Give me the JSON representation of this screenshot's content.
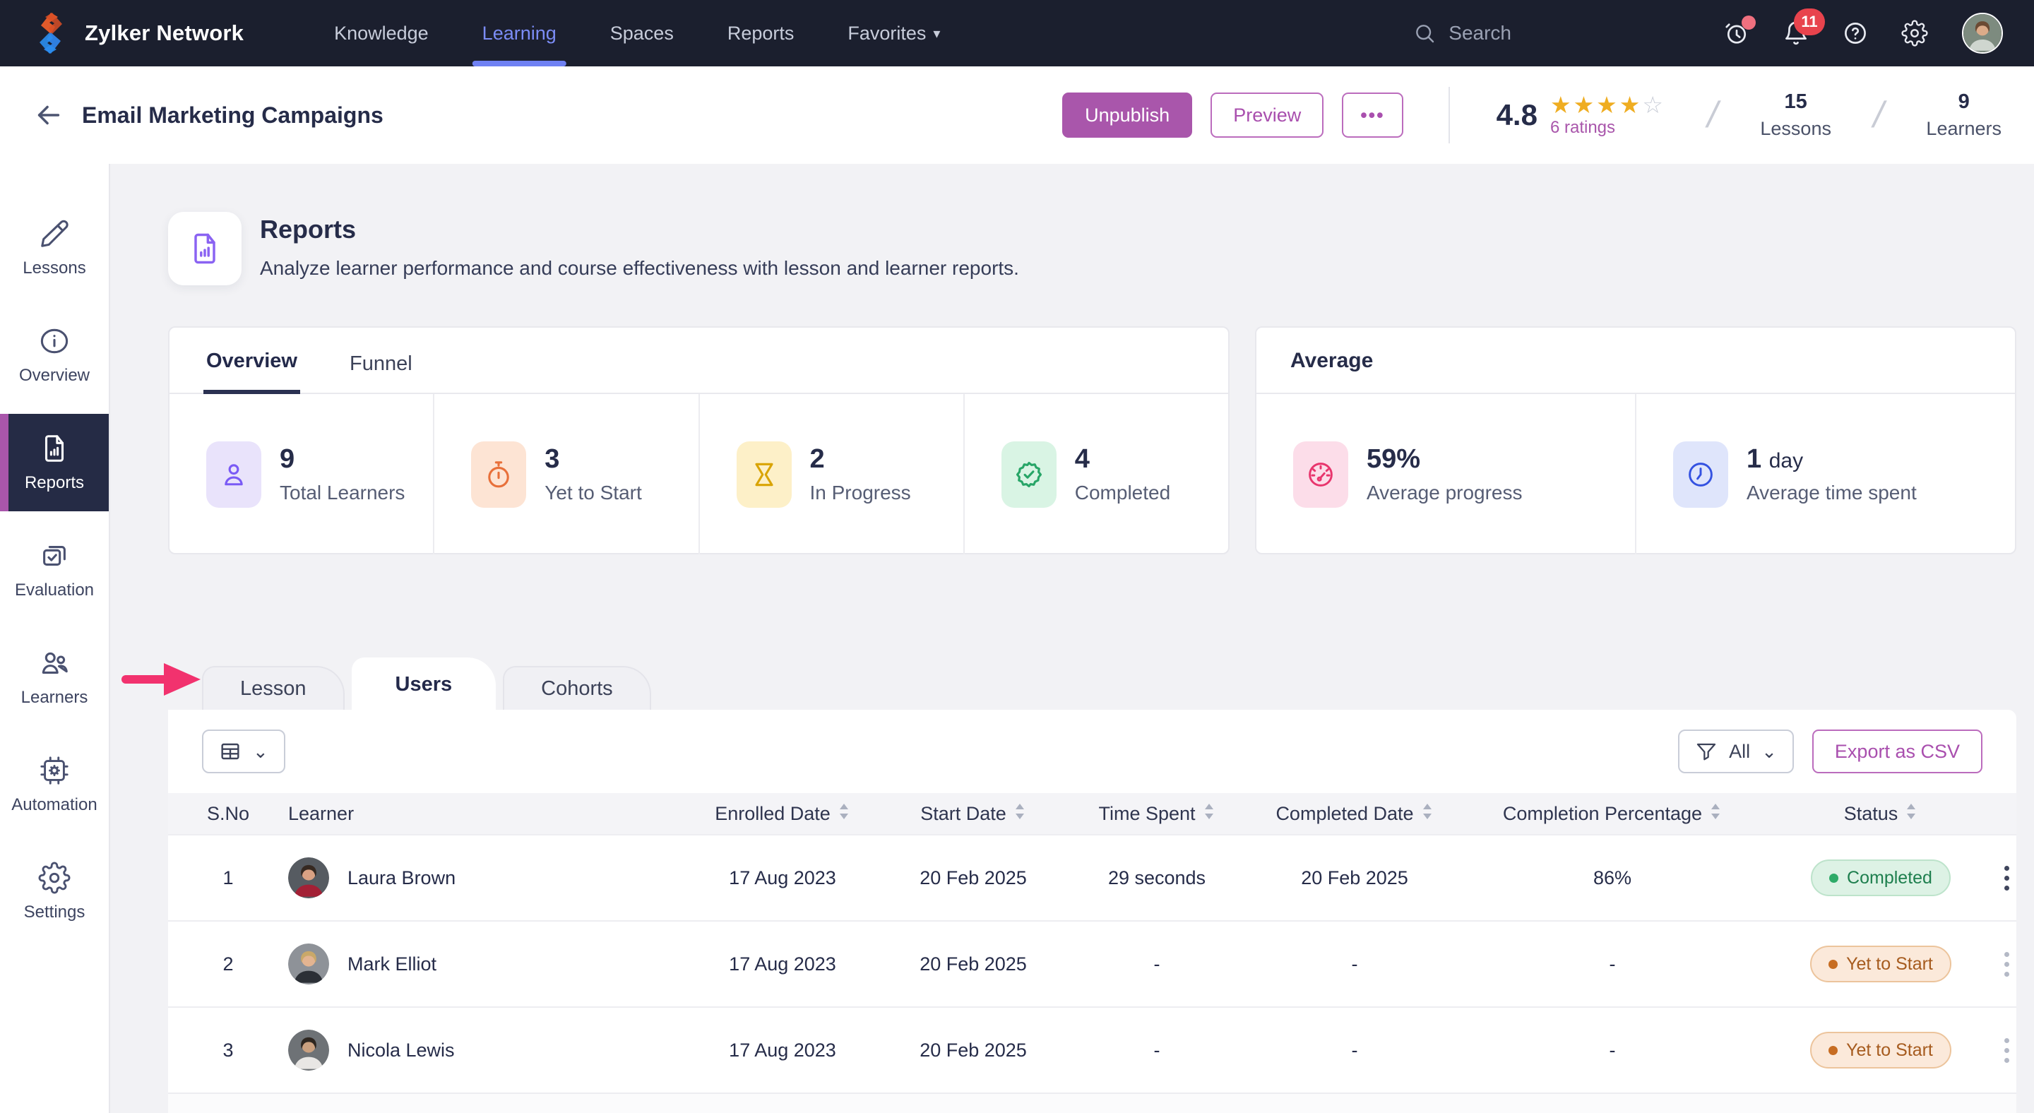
{
  "topnav": {
    "brand": "Zylker Network",
    "items": [
      {
        "label": "Knowledge",
        "active": false
      },
      {
        "label": "Learning",
        "active": true
      },
      {
        "label": "Spaces",
        "active": false
      },
      {
        "label": "Reports",
        "active": false
      },
      {
        "label": "Favorites",
        "active": false,
        "has_caret": true
      }
    ],
    "search_placeholder": "Search",
    "notification_count": "11"
  },
  "header": {
    "title": "Email Marketing Campaigns",
    "unpublish_label": "Unpublish",
    "preview_label": "Preview",
    "more_label": "•••",
    "rating": {
      "score": "4.8",
      "stars_filled": 4,
      "stars_total": 5,
      "ratings_label": "6 ratings"
    },
    "lessons": {
      "count": "15",
      "label": "Lessons"
    },
    "learners": {
      "count": "9",
      "label": "Learners"
    }
  },
  "sidebar": {
    "items": [
      {
        "label": "Lessons",
        "icon": "pencil",
        "active": false
      },
      {
        "label": "Overview",
        "icon": "info",
        "active": false
      },
      {
        "label": "Reports",
        "icon": "report-doc",
        "active": true
      },
      {
        "label": "Evaluation",
        "icon": "clipboard-check",
        "active": false
      },
      {
        "label": "Learners",
        "icon": "people",
        "active": false
      },
      {
        "label": "Automation",
        "icon": "chip-gear",
        "active": false
      },
      {
        "label": "Settings",
        "icon": "gear",
        "active": false
      }
    ]
  },
  "reports_header": {
    "title": "Reports",
    "subtitle": "Analyze learner performance and course effectiveness with lesson and learner reports."
  },
  "overview_card": {
    "tabs": [
      {
        "label": "Overview",
        "active": true
      },
      {
        "label": "Funnel",
        "active": false
      }
    ],
    "stats": [
      {
        "value": "9",
        "label": "Total Learners",
        "icon": "person",
        "accent": "#7a5af5",
        "bg": "#e9e3fb"
      },
      {
        "value": "3",
        "label": "Yet to Start",
        "icon": "stopwatch",
        "accent": "#e8703a",
        "bg": "#fde4d4"
      },
      {
        "value": "2",
        "label": "In Progress",
        "icon": "hourglass",
        "accent": "#d9a404",
        "bg": "#fdf0c8"
      },
      {
        "value": "4",
        "label": "Completed",
        "icon": "check-badge",
        "accent": "#27a567",
        "bg": "#d9f4e4"
      }
    ]
  },
  "average_card": {
    "title": "Average",
    "stats": [
      {
        "value": "59%",
        "label": "Average progress",
        "icon": "gauge",
        "accent": "#e8356d",
        "bg": "#fcdde9"
      },
      {
        "value": "1",
        "suffix": "day",
        "label": "Average time spent",
        "icon": "clock",
        "accent": "#3452e1",
        "bg": "#dfe5fb"
      }
    ]
  },
  "report_tabs": [
    {
      "label": "Lesson",
      "active": false
    },
    {
      "label": "Users",
      "active": true
    },
    {
      "label": "Cohorts",
      "active": false
    }
  ],
  "annotation": {
    "arrow_color": "#f2326e",
    "points_to": "Lesson"
  },
  "table_toolbar": {
    "filter_label": "All",
    "export_label": "Export as CSV"
  },
  "table": {
    "columns": [
      {
        "label": "S.No",
        "sortable": false
      },
      {
        "label": "Learner",
        "sortable": false
      },
      {
        "label": "Enrolled Date",
        "sortable": true
      },
      {
        "label": "Start Date",
        "sortable": true
      },
      {
        "label": "Time Spent",
        "sortable": true
      },
      {
        "label": "Completed Date",
        "sortable": true
      },
      {
        "label": "Completion Percentage",
        "sortable": true
      },
      {
        "label": "Status",
        "sortable": true
      }
    ],
    "rows": [
      {
        "sno": "1",
        "learner": "Laura Brown",
        "enrolled": "17 Aug 2023",
        "start": "20 Feb 2025",
        "time_spent": "29 seconds",
        "completed_date": "20 Feb 2025",
        "completion_pct": "86%",
        "status": "Completed",
        "status_type": "completed",
        "avatar": {
          "bg": "#565b61",
          "hair": "#362921",
          "skin": "#d9a183",
          "shirt": "#a32035"
        }
      },
      {
        "sno": "2",
        "learner": "Mark Elliot",
        "enrolled": "17 Aug 2023",
        "start": "20 Feb 2025",
        "time_spent": "-",
        "completed_date": "-",
        "completion_pct": "-",
        "status": "Yet to Start",
        "status_type": "yet-to-start",
        "avatar": {
          "bg": "#8e9298",
          "hair": "#c9a869",
          "skin": "#e3b491",
          "shirt": "#2b2f36"
        }
      },
      {
        "sno": "3",
        "learner": "Nicola Lewis",
        "enrolled": "17 Aug 2023",
        "start": "20 Feb 2025",
        "time_spent": "-",
        "completed_date": "-",
        "completion_pct": "-",
        "status": "Yet to Start",
        "status_type": "yet-to-start",
        "avatar": {
          "bg": "#6e7276",
          "hair": "#2e2620",
          "skin": "#caa07f",
          "shirt": "#e8e6e4"
        }
      }
    ]
  },
  "colors": {
    "accent_purple": "#a956ab",
    "nav_active_blue": "#6f81f3",
    "topbar_bg": "#1b1f2e",
    "sidebar_active_bg": "#252b45",
    "completed_green": "#2eab68",
    "yet_to_start_orange": "#c76d22",
    "annotation_pink": "#f2326e"
  }
}
